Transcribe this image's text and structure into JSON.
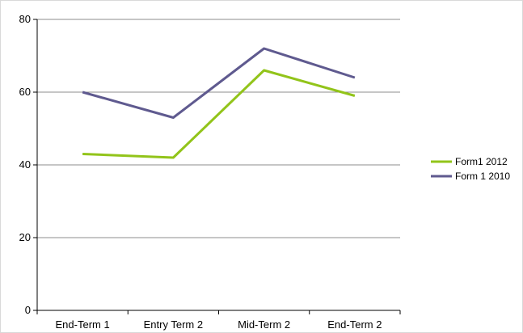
{
  "chart_data": {
    "type": "line",
    "title": "",
    "xlabel": "",
    "ylabel": "",
    "categories": [
      "End-Term 1",
      "Entry Term 2",
      "Mid-Term 2",
      "End-Term 2"
    ],
    "ylim": [
      0,
      80
    ],
    "yticks": [
      0,
      20,
      40,
      60,
      80
    ],
    "grid": "horizontal",
    "legend_position": "right",
    "series": [
      {
        "name": "Form1 2012",
        "color": "#92c41a",
        "values": [
          43,
          42,
          66,
          59
        ]
      },
      {
        "name": "Form 1 2010",
        "color": "#5f5a8f",
        "values": [
          60,
          53,
          72,
          64
        ]
      }
    ]
  }
}
